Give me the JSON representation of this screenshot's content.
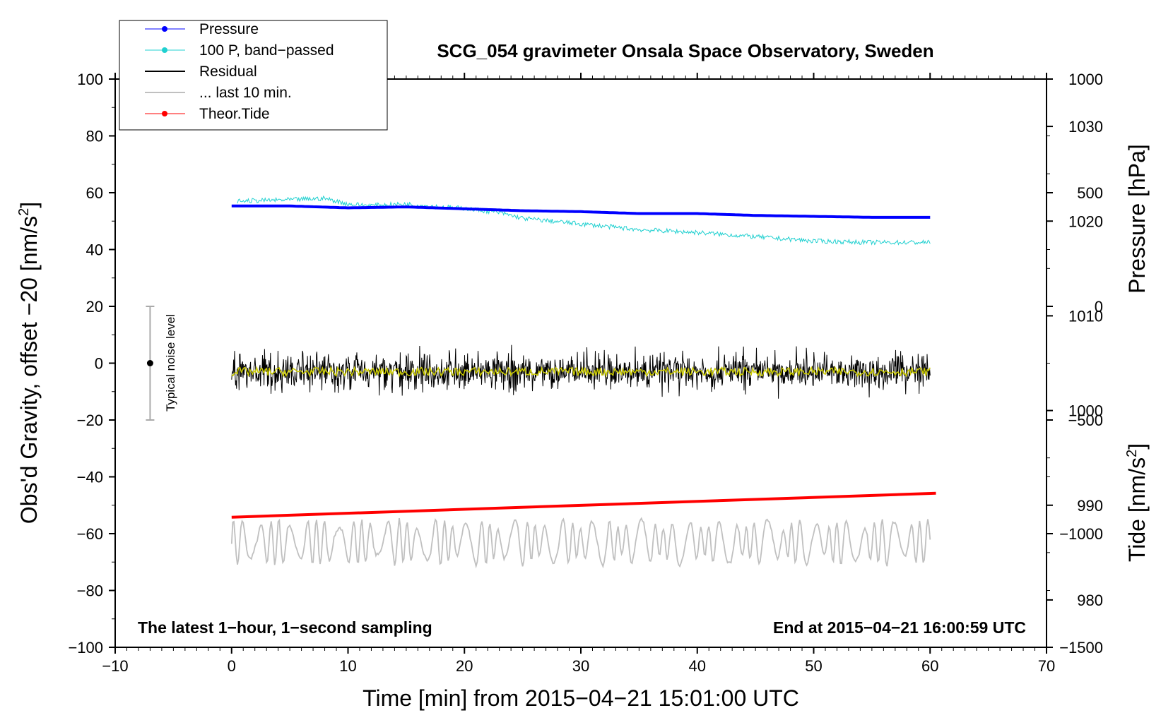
{
  "chart_data": {
    "type": "line",
    "title": "SCG_054 gravimeter Onsala Space Observatory, Sweden",
    "xlabel": "Time [min] from 2015−04−21 15:01:00 UTC",
    "ylabel_left_main": "Obs'd Gravity, offset −20 [nm/s",
    "ylabel_left_sup": "2",
    "ylabel_left_end": "]",
    "ylabel_right_pressure": "Pressure [hPa]",
    "ylabel_right_tide_main": "Tide [nm/s",
    "ylabel_right_tide_sup": "2",
    "ylabel_right_tide_end": "]",
    "xlim": [
      -10,
      70
    ],
    "ylim_left": [
      -100,
      100
    ],
    "pressure_axis_range": [
      975,
      1035
    ],
    "tide_axis_range": [
      -1500,
      1000
    ],
    "x_ticks": [
      "−10",
      "0",
      "10",
      "20",
      "30",
      "40",
      "50",
      "60",
      "70"
    ],
    "x_tick_values": [
      -10,
      0,
      10,
      20,
      30,
      40,
      50,
      60,
      70
    ],
    "y_ticks_left": [
      "−100",
      "−80",
      "−60",
      "−40",
      "−20",
      "0",
      "20",
      "40",
      "60",
      "80",
      "100"
    ],
    "y_tick_values_left": [
      -100,
      -80,
      -60,
      -40,
      -20,
      0,
      20,
      40,
      60,
      80,
      100
    ],
    "y_ticks_pressure": [
      "980",
      "990",
      "1000",
      "1010",
      "1020",
      "1030"
    ],
    "y_tick_values_pressure": [
      980,
      990,
      1000,
      1010,
      1020,
      1030
    ],
    "y_ticks_tide": [
      "−1500",
      "−1000",
      "−500",
      "0",
      "500",
      "1000"
    ],
    "y_tick_values_tide": [
      -1500,
      -1000,
      -500,
      0,
      500,
      1000
    ],
    "legend": [
      {
        "label": "Pressure",
        "color": "#0000ff",
        "marker": true,
        "width": 1
      },
      {
        "label": "100 P, band−passed",
        "color": "#20d0d0",
        "marker": true,
        "width": 1
      },
      {
        "label": "Residual",
        "color": "#000000",
        "marker": false,
        "width": 2
      },
      {
        "label": "... last 10 min.",
        "color": "#c0c0c0",
        "marker": false,
        "width": 2
      },
      {
        "label": "Theor.Tide",
        "color": "#ff0000",
        "marker": true,
        "width": 1
      }
    ],
    "series": [
      {
        "name": "Pressure",
        "axis": "pressure",
        "color": "#0000ff",
        "x": [
          0,
          5,
          10,
          15,
          20,
          25,
          30,
          35,
          40,
          45,
          50,
          55,
          60
        ],
        "values": [
          1021.6,
          1021.6,
          1021.4,
          1021.5,
          1021.3,
          1021.1,
          1021.0,
          1020.8,
          1020.8,
          1020.6,
          1020.5,
          1020.4,
          1020.4
        ]
      },
      {
        "name": "100 P, band−passed",
        "axis": "left",
        "color": "#20d0d0",
        "x": [
          0,
          5,
          8,
          10,
          12,
          15,
          18,
          20,
          23,
          25,
          30,
          35,
          40,
          45,
          50,
          55,
          60
        ],
        "values": [
          57,
          57.5,
          58,
          56,
          55.5,
          56,
          55,
          54.5,
          53,
          51,
          49,
          47,
          46,
          44.5,
          43,
          42.5,
          42.5
        ]
      },
      {
        "name": "Residual",
        "axis": "left",
        "color": "#000000",
        "x_range": [
          0,
          60
        ],
        "center": -3,
        "amplitude": 8
      },
      {
        "name": "Residual smoothed",
        "axis": "left",
        "color": "#cccc00",
        "x_range": [
          0,
          60
        ],
        "center": -3,
        "amplitude": 1.5
      },
      {
        "name": "... last 10 min.",
        "axis": "left",
        "color": "#c0c0c0",
        "x_range": [
          0,
          60
        ],
        "center": -63,
        "amplitude": 8
      },
      {
        "name": "Theor.Tide",
        "axis": "left",
        "color": "#ff0000",
        "x": [
          0,
          60.5
        ],
        "values": [
          -54.2,
          -45.8
        ]
      }
    ],
    "noise_indicator": {
      "label": "Typical noise level",
      "x": -7,
      "center": 0,
      "range": [
        -20,
        20
      ]
    },
    "annotations": {
      "bottom_left": "The latest 1−hour, 1−second sampling",
      "bottom_right": "End at 2015−04−21 16:00:59 UTC"
    }
  }
}
